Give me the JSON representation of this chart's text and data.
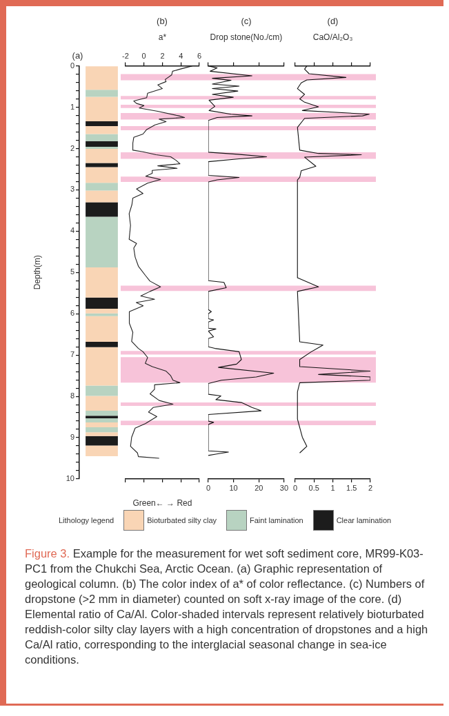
{
  "chart_data": [
    {
      "type": "bar",
      "title": "(a)",
      "ylabel": "Depth(m)",
      "stacked": true,
      "categories": [
        null
      ],
      "ylim": [
        10,
        0
      ],
      "yticks": [
        0,
        {
          "value": 0.2,
          "label": null
        },
        {
          "value": 0.4,
          "label": null
        },
        {
          "value": 0.6,
          "label": null
        },
        {
          "value": 0.8,
          "label": null
        },
        1,
        {
          "value": 1.2,
          "label": null
        },
        {
          "value": 1.4,
          "label": null
        },
        {
          "value": 1.6,
          "label": null
        },
        {
          "value": 1.8,
          "label": null
        },
        2,
        {
          "value": 2.2,
          "label": null
        },
        {
          "value": 2.4,
          "label": null
        },
        {
          "value": 2.6,
          "label": null
        },
        {
          "value": 2.8,
          "label": null
        },
        3,
        {
          "value": 3.2,
          "label": null
        },
        {
          "value": 3.4,
          "label": null
        },
        {
          "value": 3.6,
          "label": null
        },
        {
          "value": 3.8,
          "label": null
        },
        4,
        {
          "value": 4.2,
          "label": null
        },
        {
          "value": 4.4,
          "label": null
        },
        {
          "value": 4.6,
          "label": null
        },
        {
          "value": 4.8,
          "label": null
        },
        5,
        {
          "value": 5.2,
          "label": null
        },
        {
          "value": 5.4,
          "label": null
        },
        {
          "value": 5.6,
          "label": null
        },
        {
          "value": 5.8,
          "label": null
        },
        6,
        {
          "value": 6.2,
          "label": null
        },
        {
          "value": 6.4,
          "label": null
        },
        {
          "value": 6.6,
          "label": null
        },
        {
          "value": 6.8,
          "label": null
        },
        7,
        {
          "value": 7.2,
          "label": null
        },
        {
          "value": 7.4,
          "label": null
        },
        {
          "value": 7.6,
          "label": null
        },
        {
          "value": 7.8,
          "label": null
        },
        8,
        {
          "value": 8.2,
          "label": null
        },
        {
          "value": 8.4,
          "label": null
        },
        {
          "value": 8.6,
          "label": null
        },
        {
          "value": 8.8,
          "label": null
        },
        9,
        {
          "value": 9.2,
          "label": null
        },
        {
          "value": 9.4,
          "label": null
        },
        {
          "value": 9.6,
          "label": null
        },
        {
          "value": 9.8,
          "label": null
        },
        10
      ],
      "tick_labels": "y",
      "legend": "bottom",
      "legend_title": "Lithology legend",
      "series": [
        {
          "name": "Bioturbated silty clay",
          "color": "#f9d5b5",
          "values": [
            0.58
          ]
        },
        {
          "name": "Faint lamination",
          "color": "#b8d3c1",
          "values": [
            0.17
          ]
        },
        {
          "color": "#f9d5b5",
          "values": [
            0.59
          ]
        },
        {
          "name": "Clear lamination",
          "color": "#1c1c1c",
          "values": [
            0.12
          ]
        },
        {
          "color": "#f9d5b5",
          "values": [
            0.19
          ]
        },
        {
          "color": "#b8d3c1",
          "values": [
            0.17
          ]
        },
        {
          "color": "#1c1c1c",
          "values": [
            0.14
          ]
        },
        {
          "color": "#b8d3c1",
          "values": [
            0.05
          ]
        },
        {
          "color": "#f9d5b5",
          "values": [
            0.34
          ]
        },
        {
          "color": "#1c1c1c",
          "values": [
            0.1
          ]
        },
        {
          "color": "#f9d5b5",
          "values": [
            0.38
          ]
        },
        {
          "color": "#b8d3c1",
          "values": [
            0.19
          ]
        },
        {
          "color": "#f9d5b5",
          "values": [
            0.28
          ]
        },
        {
          "color": "#1c1c1c",
          "values": [
            0.35
          ]
        },
        {
          "color": "#b8d3c1",
          "values": [
            1.23
          ]
        },
        {
          "color": "#f9d5b5",
          "values": [
            0.73
          ]
        },
        {
          "color": "#1c1c1c",
          "values": [
            0.27
          ]
        },
        {
          "color": "#f9d5b5",
          "values": [
            0.11
          ]
        },
        {
          "color": "#b8d3c1",
          "values": [
            0.07
          ]
        },
        {
          "color": "#f9d5b5",
          "values": [
            0.62
          ]
        },
        {
          "color": "#1c1c1c",
          "values": [
            0.13
          ]
        },
        {
          "color": "#f9d5b5",
          "values": [
            0.93
          ]
        },
        {
          "color": "#b8d3c1",
          "values": [
            0.25
          ]
        },
        {
          "color": "#f9d5b5",
          "values": [
            0.36
          ]
        },
        {
          "color": "#b8d3c1",
          "values": [
            0.12
          ]
        },
        {
          "color": "#1c1c1c",
          "values": [
            0.06
          ]
        },
        {
          "color": "#b8d3c1",
          "values": [
            0.1
          ]
        },
        {
          "color": "#f9d5b5",
          "values": [
            0.12
          ]
        },
        {
          "color": "#b8d3c1",
          "values": [
            0.12
          ]
        },
        {
          "color": "#f9d5b5",
          "values": [
            0.09
          ]
        },
        {
          "color": "#1c1c1c",
          "values": [
            0.23
          ]
        },
        {
          "color": "#f9d5b5",
          "values": [
            0.26
          ]
        }
      ],
      "annotations": [
        "Figure 3.",
        "Example for the measurement for wet soft sediment core, MR99-K03-PC1 from the Chukchi Sea, Arctic Ocean. (a) Graphic representation of geological column. (b) The color index of a* of color reflectance. (c) Numbers of dropstone (>2 mm in diameter) counted on soft x-ray image of the core. (d) Elemental ratio of Ca/Al. Color-shaded intervals represent relatively bioturbated reddish-color silty clay layers with a high concentration of dropstones and a high Ca/Al ratio, corresponding to the interglacial seasonal change in sea-ice conditions."
      ]
    },
    {
      "type": "line",
      "title": "(b)",
      "orientation": "horizontal",
      "x2label": "a*",
      "xlabel": "Green← → Red",
      "x2lim": [
        -2,
        6
      ],
      "x2ticks": [
        -2,
        0,
        2,
        4,
        6
      ],
      "ylim": [
        10,
        0
      ],
      "tick_labels": "x",
      "bands": [
        {
          "axis": "y",
          "from": 0.2,
          "to": 0.35,
          "color": "#f7c3d9"
        },
        {
          "axis": "y",
          "from": 0.73,
          "to": 0.81,
          "color": "#f7c3d9"
        },
        {
          "axis": "y",
          "from": 0.94,
          "to": 1.02,
          "color": "#f7c3d9"
        },
        {
          "axis": "y",
          "from": 1.14,
          "to": 1.3,
          "color": "#f7c3d9"
        },
        {
          "axis": "y",
          "from": 1.46,
          "to": 1.56,
          "color": "#f7c3d9"
        },
        {
          "axis": "y",
          "from": 2.09,
          "to": 2.25,
          "color": "#f7c3d9"
        },
        {
          "axis": "y",
          "from": 2.68,
          "to": 2.81,
          "color": "#f7c3d9"
        },
        {
          "axis": "y",
          "from": 5.32,
          "to": 5.45,
          "color": "#f7c3d9"
        },
        {
          "axis": "y",
          "from": 6.9,
          "to": 6.99,
          "color": "#f7c3d9"
        },
        {
          "axis": "y",
          "from": 7.05,
          "to": 7.67,
          "color": "#f7c3d9"
        },
        {
          "axis": "y",
          "from": 8.15,
          "to": 8.23,
          "color": "#f7c3d9"
        },
        {
          "axis": "y",
          "from": 8.59,
          "to": 8.7,
          "color": "#f7c3d9"
        }
      ],
      "series": [
        {
          "color": "#222222",
          "axis": "x2",
          "x": [
            0,
            0.08,
            0.13,
            0.22,
            0.33,
            0.38,
            0.46,
            0.55,
            0.66,
            0.77,
            0.85,
            0.91,
            0.96,
            1.02,
            1.1,
            1.21,
            1.25,
            1.29,
            1.35,
            1.43,
            1.54,
            1.65,
            1.73,
            1.87,
            2.04,
            2.08,
            2.15,
            2.2,
            2.29,
            2.37,
            2.42,
            2.48,
            2.53,
            2.6,
            2.67,
            2.75,
            2.84,
            2.98,
            3.09,
            3.2,
            3.36,
            3.58,
            3.86,
            4.2,
            4.3,
            4.41,
            4.63,
            4.85,
            5.07,
            5.21,
            5.35,
            5.46,
            5.57,
            5.65,
            5.73,
            5.81,
            5.95,
            6.23,
            6.45,
            6.67,
            6.84,
            6.92,
            7.06,
            7.2,
            7.28,
            7.39,
            7.5,
            7.61,
            7.67,
            7.72,
            7.83,
            7.94,
            8.1,
            8.19,
            8.27,
            8.38,
            8.49,
            8.66,
            8.77,
            8.99,
            9.21,
            9.37,
            9.46,
            9.5
          ],
          "values": [
            5.25,
            3.9,
            3.1,
            3.0,
            2.3,
            2.4,
            1.5,
            2.0,
            0.4,
            0.3,
            -1.1,
            -0.8,
            0.0,
            -0.5,
            1.5,
            3.8,
            4.4,
            1.65,
            2.4,
            1.2,
            0.3,
            -0.1,
            -1.1,
            -1.2,
            -1.2,
            -0.1,
            1.3,
            2.9,
            3.5,
            3.9,
            1.5,
            3.6,
            0.9,
            0.9,
            0.2,
            1.8,
            0.4,
            -0.8,
            -0.1,
            -1.2,
            -1.3,
            -1.6,
            -1.45,
            -1.6,
            -0.8,
            -1.1,
            -0.95,
            -0.6,
            0.15,
            0.65,
            1.8,
            0.66,
            -0.34,
            1.15,
            -0.83,
            -0.08,
            -1.58,
            -1.58,
            -1.2,
            -1.33,
            -0.6,
            -0.1,
            0.4,
            0.15,
            0.9,
            2.4,
            2.9,
            3.15,
            3.9,
            1.15,
            1.15,
            0.66,
            1.65,
            3.15,
            1.0,
            0.5,
            1.4,
            0.15,
            -0.95,
            -1.33,
            -1.45,
            -0.7,
            -0.6,
            1.65
          ]
        }
      ]
    },
    {
      "type": "line",
      "title": "(c)",
      "orientation": "horizontal",
      "x2label": "Drop stone(No./cm)",
      "xlim": [
        0,
        30
      ],
      "xticks": [
        0,
        10,
        20,
        30
      ],
      "ylim": [
        10,
        0
      ],
      "tick_labels": "x",
      "bands": [
        {
          "axis": "y",
          "from": 0.2,
          "to": 0.35,
          "color": "#f7c3d9"
        },
        {
          "axis": "y",
          "from": 0.73,
          "to": 0.81,
          "color": "#f7c3d9"
        },
        {
          "axis": "y",
          "from": 0.94,
          "to": 1.02,
          "color": "#f7c3d9"
        },
        {
          "axis": "y",
          "from": 1.14,
          "to": 1.3,
          "color": "#f7c3d9"
        },
        {
          "axis": "y",
          "from": 1.46,
          "to": 1.56,
          "color": "#f7c3d9"
        },
        {
          "axis": "y",
          "from": 2.09,
          "to": 2.25,
          "color": "#f7c3d9"
        },
        {
          "axis": "y",
          "from": 2.68,
          "to": 2.81,
          "color": "#f7c3d9"
        },
        {
          "axis": "y",
          "from": 5.32,
          "to": 5.45,
          "color": "#f7c3d9"
        },
        {
          "axis": "y",
          "from": 6.9,
          "to": 6.99,
          "color": "#f7c3d9"
        },
        {
          "axis": "y",
          "from": 7.05,
          "to": 7.67,
          "color": "#f7c3d9"
        },
        {
          "axis": "y",
          "from": 8.15,
          "to": 8.23,
          "color": "#f7c3d9"
        },
        {
          "axis": "y",
          "from": 8.59,
          "to": 8.7,
          "color": "#f7c3d9"
        }
      ],
      "series": [
        {
          "color": "#111111",
          "x": [
            0,
            0.05,
            0.13,
            0.24,
            0.3,
            0.35,
            0.44,
            0.49,
            0.55,
            0.61,
            0.69,
            0.76,
            0.83,
            0.98,
            1.08,
            1.17,
            1.21,
            1.25,
            1.32,
            2.09,
            2.14,
            2.2,
            2.25,
            2.32,
            2.65,
            2.7,
            2.76,
            2.81,
            5.2,
            5.24,
            5.37,
            5.46,
            5.9,
            5.95,
            6.0,
            6.12,
            6.15,
            6.2,
            6.35,
            6.37,
            6.42,
            6.56,
            6.6,
            6.8,
            6.84,
            6.92,
            7.11,
            7.22,
            7.3,
            7.44,
            7.53,
            7.61,
            7.69,
            7.95,
            7.99,
            8.08,
            8.15,
            8.27,
            8.35,
            8.44,
            8.6,
            8.63,
            8.68,
            9.32,
            9.35,
            9.4,
            9.43
          ],
          "values": [
            0,
            3.5,
            0.7,
            17.3,
            1.6,
            9,
            1.6,
            12.2,
            1.6,
            11.7,
            1.6,
            9.9,
            0.3,
            2.6,
            0.3,
            9,
            17.3,
            3.5,
            0,
            0,
            11.7,
            23.1,
            12.2,
            0,
            0,
            12.2,
            3.5,
            0,
            0,
            6.2,
            7.1,
            0,
            0,
            1.2,
            0,
            0,
            2.1,
            0,
            0,
            3.0,
            0,
            2.1,
            0,
            0,
            2.6,
            12.2,
            13.1,
            11.2,
            4,
            25.9,
            19.0,
            5.2,
            0,
            0,
            5.0,
            3,
            13.1,
            17.3,
            20.9,
            0,
            0,
            2.1,
            0,
            0,
            8.0,
            3.0,
            0
          ]
        }
      ]
    },
    {
      "type": "line",
      "title": "(d)",
      "orientation": "horizontal",
      "x2label": "CaO/Al₂O₃",
      "xlim": [
        0,
        2
      ],
      "xticks": [
        0,
        0.5,
        1,
        1.5,
        2
      ],
      "ylim": [
        10,
        0
      ],
      "tick_labels": "x",
      "bands": [
        {
          "axis": "y",
          "from": 0.2,
          "to": 0.35,
          "color": "#f7c3d9"
        },
        {
          "axis": "y",
          "from": 0.73,
          "to": 0.81,
          "color": "#f7c3d9"
        },
        {
          "axis": "y",
          "from": 0.94,
          "to": 1.02,
          "color": "#f7c3d9"
        },
        {
          "axis": "y",
          "from": 1.14,
          "to": 1.3,
          "color": "#f7c3d9"
        },
        {
          "axis": "y",
          "from": 1.46,
          "to": 1.56,
          "color": "#f7c3d9"
        },
        {
          "axis": "y",
          "from": 2.09,
          "to": 2.25,
          "color": "#f7c3d9"
        },
        {
          "axis": "y",
          "from": 2.68,
          "to": 2.81,
          "color": "#f7c3d9"
        },
        {
          "axis": "y",
          "from": 5.32,
          "to": 5.45,
          "color": "#f7c3d9"
        },
        {
          "axis": "y",
          "from": 6.9,
          "to": 6.99,
          "color": "#f7c3d9"
        },
        {
          "axis": "y",
          "from": 7.05,
          "to": 7.67,
          "color": "#f7c3d9"
        },
        {
          "axis": "y",
          "from": 8.15,
          "to": 8.23,
          "color": "#f7c3d9"
        },
        {
          "axis": "y",
          "from": 8.59,
          "to": 8.7,
          "color": "#f7c3d9"
        }
      ],
      "series": [
        {
          "color": "#111111",
          "x": [
            0,
            0.08,
            0.19,
            0.28,
            0.34,
            0.41,
            0.55,
            0.69,
            0.8,
            0.88,
            0.99,
            1.08,
            1.17,
            1.21,
            1.27,
            1.49,
            2.04,
            2.12,
            2.15,
            2.21,
            2.43,
            2.54,
            2.7,
            2.76,
            5.13,
            5.35,
            5.46,
            6.68,
            6.76,
            6.92,
            7.11,
            7.28,
            7.39,
            7.47,
            7.53,
            7.61,
            7.67,
            7.89,
            8.55,
            8.99,
            9.21,
            9.37
          ],
          "values": [
            0.31,
            0.25,
            0.37,
            1.35,
            0.31,
            0.16,
            0.06,
            0.25,
            0.12,
            0.25,
            0.62,
            0.19,
            1.97,
            1.79,
            0.25,
            0.06,
            0.12,
            0.62,
            1.76,
            0.25,
            0.55,
            0.16,
            0.12,
            0.06,
            0.06,
            0.62,
            0.06,
            0.12,
            0.74,
            0.43,
            0.12,
            0.12,
            2.0,
            0.62,
            2.0,
            2.0,
            0.12,
            0.06,
            0.06,
            0.19,
            0.31,
            0.12
          ]
        }
      ]
    }
  ]
}
